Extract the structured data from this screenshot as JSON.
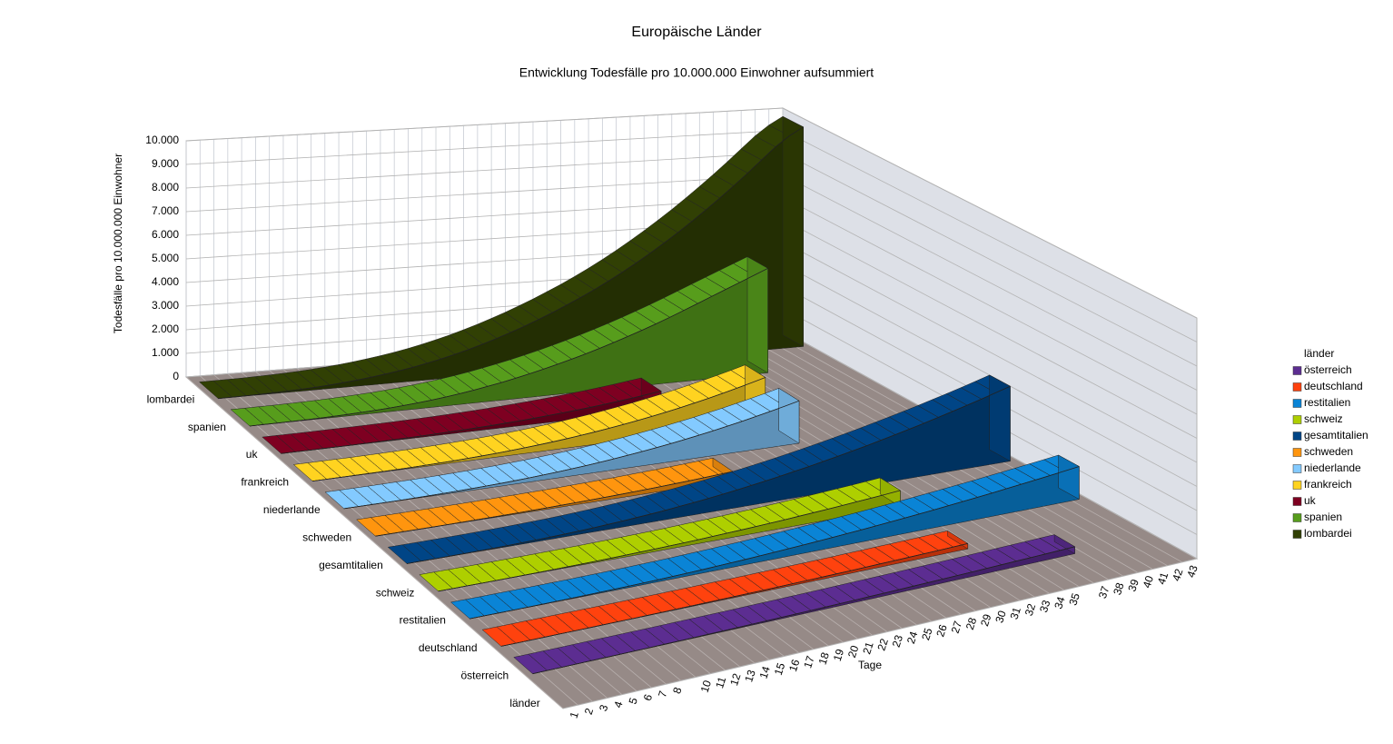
{
  "chart_data": {
    "type": "area3d",
    "title": "Europäische Länder",
    "subtitle": "Entwicklung Todesfälle pro 10.000.000 Einwohner aufsummiert",
    "y_label": "Todesfälle pro 10.000.000 Einwohner",
    "x_label": "Tage",
    "z_label": "länder",
    "legend_title": "länder",
    "legend": "right",
    "grid": true,
    "categories": [
      1,
      2,
      3,
      4,
      5,
      6,
      7,
      8,
      null,
      10,
      11,
      12,
      13,
      14,
      15,
      16,
      17,
      18,
      19,
      20,
      21,
      22,
      23,
      24,
      25,
      26,
      27,
      28,
      29,
      30,
      31,
      32,
      33,
      34,
      35,
      null,
      37,
      38,
      39,
      40,
      41,
      42,
      43
    ],
    "ylim": [
      0,
      10000
    ],
    "yticks": [
      0,
      {
        "value": 1000,
        "label": "1.000"
      },
      {
        "value": 2000,
        "label": "2.000"
      },
      {
        "value": 3000,
        "label": "3.000"
      },
      {
        "value": 4000,
        "label": "4.000"
      },
      {
        "value": 5000,
        "label": "5.000"
      },
      {
        "value": 6000,
        "label": "6.000"
      },
      {
        "value": 7000,
        "label": "7.000"
      },
      {
        "value": 8000,
        "label": "8.000"
      },
      {
        "value": 9000,
        "label": "9.000"
      },
      {
        "value": 10000,
        "label": "10.000"
      }
    ],
    "series": [
      {
        "name": "österreich",
        "color": "#5c2d91",
        "values": [
          0,
          0,
          1,
          2,
          3,
          4,
          6,
          8,
          10,
          13,
          16,
          20,
          24,
          29,
          34,
          40,
          46,
          53,
          60,
          68,
          76,
          85,
          94,
          104,
          114,
          125,
          136,
          148,
          160,
          173,
          186,
          200,
          214,
          229,
          244,
          260,
          276,
          292,
          null,
          null,
          null,
          null,
          null
        ]
      },
      {
        "name": "deutschland",
        "color": "#ff420e",
        "values": [
          0,
          0,
          1,
          1,
          2,
          3,
          4,
          6,
          8,
          10,
          13,
          16,
          20,
          24,
          29,
          34,
          40,
          46,
          53,
          61,
          69,
          78,
          88,
          98,
          109,
          121,
          133,
          146,
          160,
          174,
          189,
          205,
          222,
          null,
          null,
          null,
          null,
          null,
          null,
          null,
          null,
          null,
          null
        ]
      },
      {
        "name": "restitalien",
        "color": "#0a84d6",
        "values": [
          0,
          1,
          2,
          4,
          7,
          11,
          16,
          22,
          29,
          37,
          47,
          58,
          71,
          86,
          103,
          122,
          143,
          166,
          191,
          218,
          247,
          278,
          311,
          346,
          383,
          422,
          463,
          506,
          551,
          598,
          647,
          698,
          751,
          806,
          863,
          922,
          983,
          1046,
          1111,
          1178,
          1247,
          1318,
          1391
        ]
      },
      {
        "name": "schweiz",
        "color": "#aecf00",
        "values": [
          0,
          1,
          2,
          3,
          5,
          8,
          12,
          17,
          23,
          30,
          38,
          48,
          59,
          72,
          87,
          103,
          121,
          141,
          163,
          187,
          213,
          241,
          271,
          303,
          337,
          373,
          411,
          451,
          493,
          537,
          583,
          631,
          681,
          null,
          null,
          null,
          null,
          null,
          null,
          null,
          null,
          null,
          null
        ]
      },
      {
        "name": "gesamtitalien",
        "color": "#004586",
        "values": [
          0,
          2,
          4,
          8,
          13,
          20,
          29,
          40,
          54,
          71,
          91,
          114,
          141,
          172,
          207,
          247,
          291,
          340,
          394,
          453,
          517,
          586,
          660,
          740,
          825,
          915,
          1010,
          1110,
          1215,
          1325,
          1440,
          1560,
          1685,
          1815,
          1950,
          2090,
          2235,
          2385,
          2540,
          2700,
          2865,
          3035,
          3210
        ]
      },
      {
        "name": "schweden",
        "color": "#ff950e",
        "values": [
          0,
          1,
          2,
          4,
          6,
          9,
          13,
          18,
          24,
          31,
          39,
          48,
          59,
          71,
          85,
          100,
          117,
          136,
          157,
          180,
          205,
          232,
          261,
          293,
          327,
          363,
          null,
          null,
          null,
          null,
          null,
          null,
          null,
          null,
          null,
          null,
          null,
          null,
          null,
          null,
          null,
          null,
          null
        ]
      },
      {
        "name": "niederlande",
        "color": "#83caff",
        "values": [
          0,
          1,
          3,
          6,
          11,
          18,
          27,
          38,
          52,
          69,
          90,
          114,
          142,
          174,
          210,
          251,
          297,
          348,
          404,
          466,
          533,
          606,
          685,
          770,
          861,
          958,
          1062,
          1172,
          1289,
          1412,
          1542,
          1679,
          1823,
          null,
          null,
          null,
          null,
          null,
          null,
          null,
          null,
          null,
          null
        ]
      },
      {
        "name": "frankreich",
        "color": "#ffd320",
        "values": [
          0,
          1,
          3,
          6,
          10,
          16,
          24,
          34,
          47,
          63,
          82,
          105,
          132,
          163,
          199,
          240,
          286,
          338,
          396,
          460,
          530,
          607,
          691,
          782,
          880,
          985,
          1097,
          1217,
          1345,
          1480,
          1623,
          1774,
          1933,
          null,
          null,
          null,
          null,
          null,
          null,
          null,
          null,
          null,
          null
        ]
      },
      {
        "name": "uk",
        "color": "#7e0021",
        "values": [
          0,
          1,
          2,
          4,
          7,
          11,
          16,
          22,
          30,
          40,
          52,
          66,
          83,
          103,
          126,
          152,
          181,
          214,
          251,
          292,
          337,
          386,
          440,
          499,
          563,
          632,
          706,
          785,
          null,
          null,
          null,
          null,
          null,
          null,
          null,
          null,
          null,
          null,
          null,
          null,
          null,
          null,
          null
        ]
      },
      {
        "name": "spanien",
        "color": "#579d1c",
        "values": [
          0,
          2,
          5,
          10,
          18,
          30,
          45,
          65,
          90,
          120,
          155,
          200,
          250,
          310,
          380,
          460,
          550,
          650,
          760,
          880,
          1010,
          1150,
          1300,
          1460,
          1630,
          1810,
          2000,
          2200,
          2410,
          2630,
          2860,
          3100,
          3350,
          3600,
          3850,
          4100,
          4350,
          4600,
          null,
          null,
          null,
          null,
          null
        ]
      },
      {
        "name": "lombardei",
        "color": "#314004",
        "values": [
          0,
          5,
          10,
          20,
          35,
          55,
          80,
          110,
          150,
          200,
          260,
          330,
          410,
          500,
          600,
          720,
          850,
          1000,
          1160,
          1340,
          1530,
          1740,
          1960,
          2200,
          2450,
          2720,
          3000,
          3300,
          3620,
          3960,
          4320,
          4700,
          5100,
          5520,
          5960,
          6420,
          6900,
          7400,
          7920,
          8460,
          9000,
          9450,
          9800
        ]
      }
    ]
  }
}
